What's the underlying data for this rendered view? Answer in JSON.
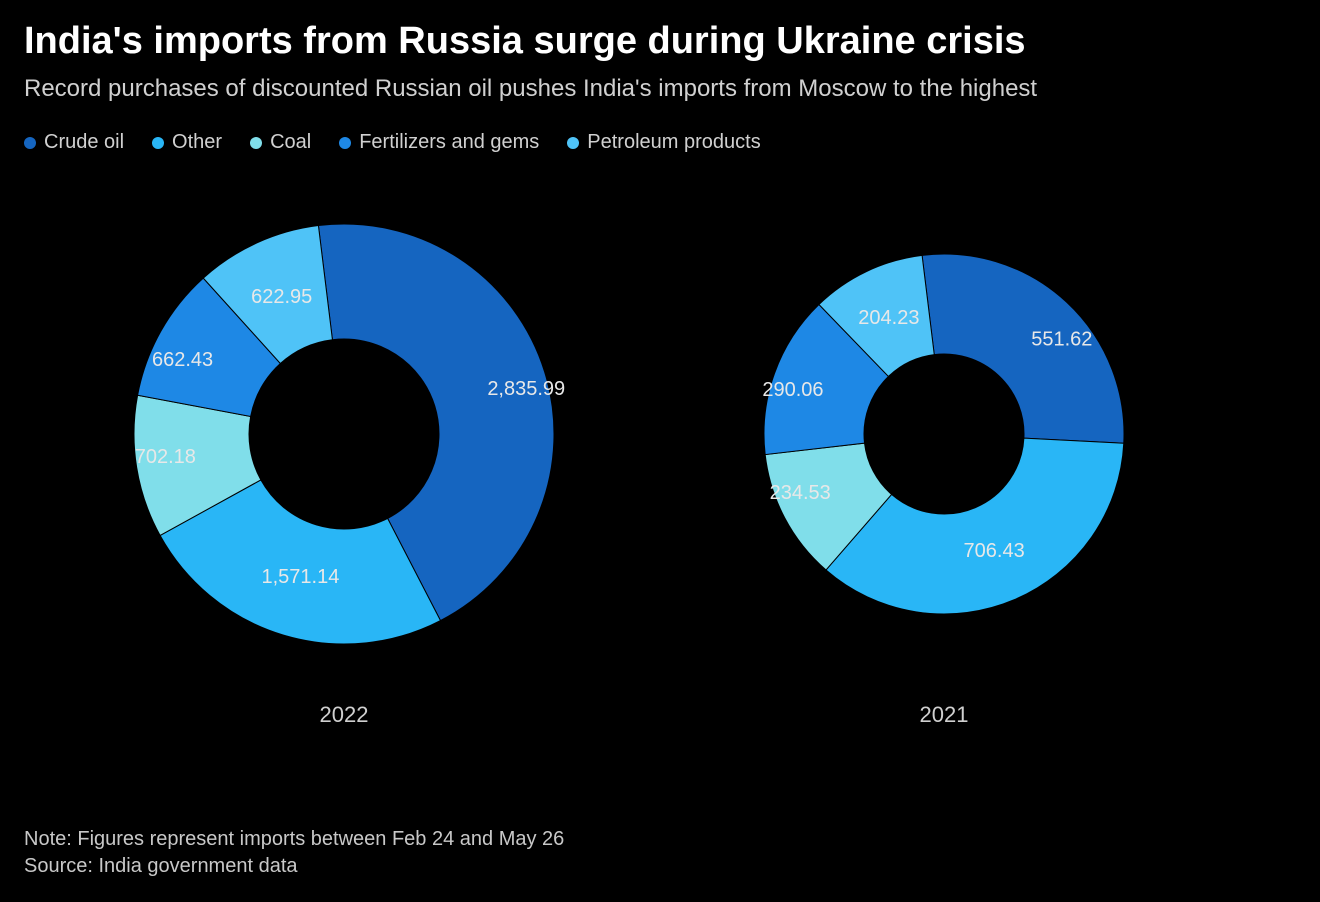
{
  "title": "India's imports from Russia surge during Ukraine crisis",
  "subtitle": "Record purchases of discounted Russian oil pushes India's imports from Moscow to the highest",
  "legend": [
    {
      "label": "Crude oil",
      "color": "#1565c0"
    },
    {
      "label": "Other",
      "color": "#29b6f6"
    },
    {
      "label": "Coal",
      "color": "#80deea"
    },
    {
      "label": "Fertilizers and gems",
      "color": "#1e88e5"
    },
    {
      "label": "Petroleum products",
      "color": "#4fc3f7"
    }
  ],
  "charts": [
    {
      "type": "donut",
      "year_label": "2022",
      "outer_radius": 210,
      "inner_radius": 95,
      "start_angle_deg": -7,
      "background_color": "#000000",
      "label_fontsize": 20,
      "label_color": "#e8e8e8",
      "slices": [
        {
          "name": "Crude oil",
          "value": 2835.99,
          "label": "2,835.99",
          "color": "#1565c0",
          "label_r": 150,
          "label_anchor": "start"
        },
        {
          "name": "Other",
          "value": 1571.14,
          "label": "1,571.14",
          "color": "#29b6f6",
          "label_r": 150,
          "label_anchor": "middle"
        },
        {
          "name": "Coal",
          "value": 702.18,
          "label": "702.18",
          "color": "#80deea",
          "label_r": 150,
          "label_anchor": "end"
        },
        {
          "name": "Fertilizers and gems",
          "value": 662.43,
          "label": "662.43",
          "color": "#1e88e5",
          "label_r": 150,
          "label_anchor": "end"
        },
        {
          "name": "Petroleum products",
          "value": 622.95,
          "label": "622.95",
          "color": "#4fc3f7",
          "label_r": 150,
          "label_anchor": "middle"
        }
      ]
    },
    {
      "type": "donut",
      "year_label": "2021",
      "outer_radius": 180,
      "inner_radius": 80,
      "start_angle_deg": -7,
      "background_color": "#000000",
      "label_fontsize": 20,
      "label_color": "#e8e8e8",
      "slices": [
        {
          "name": "Crude oil",
          "value": 551.62,
          "label": "551.62",
          "color": "#1565c0",
          "label_r": 128,
          "label_anchor": "start"
        },
        {
          "name": "Other",
          "value": 706.43,
          "label": "706.43",
          "color": "#29b6f6",
          "label_r": 128,
          "label_anchor": "middle"
        },
        {
          "name": "Coal",
          "value": 234.53,
          "label": "234.53",
          "color": "#80deea",
          "label_r": 128,
          "label_anchor": "end"
        },
        {
          "name": "Fertilizers and gems",
          "value": 290.06,
          "label": "290.06",
          "color": "#1e88e5",
          "label_r": 128,
          "label_anchor": "end"
        },
        {
          "name": "Petroleum products",
          "value": 204.23,
          "label": "204.23",
          "color": "#4fc3f7",
          "label_r": 128,
          "label_anchor": "middle"
        }
      ]
    }
  ],
  "footer": {
    "note": "Note: Figures represent imports between Feb 24 and May 26",
    "source": "Source: India government data"
  }
}
